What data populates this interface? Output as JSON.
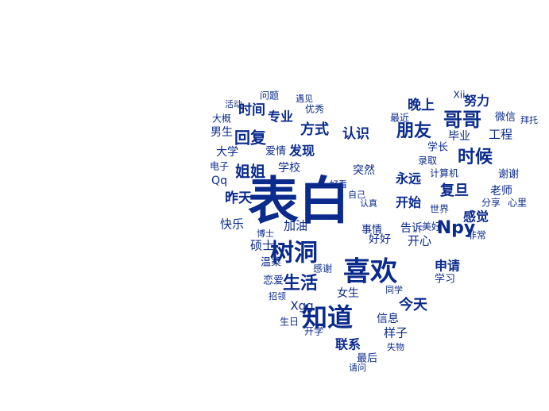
{
  "colors": {
    "ink": "#0a2a8c",
    "background": "#ffffff"
  },
  "words": [
    "表白",
    "喜欢",
    "树洞",
    "知道",
    "哥哥",
    "时候",
    "姐姐",
    "回复",
    "朋友",
    "认识",
    "生活",
    "Npy",
    "时间",
    "昨天",
    "复旦",
    "快乐",
    "今天",
    "晚上",
    "大学",
    "方式",
    "专业",
    "感觉",
    "申请",
    "联系",
    "发现",
    "永远",
    "开始",
    "硕士",
    "男生",
    "女生",
    "学校",
    "老师",
    "加油",
    "告诉",
    "开心",
    "好好",
    "工程",
    "毕业",
    "Qq",
    "微信",
    "爱情",
    "事情",
    "突然",
    "计算机",
    "谢谢",
    "努力",
    "学长",
    "世界",
    "分享",
    "心里",
    "美好",
    "非常",
    "Xgg",
    "样子",
    "信息",
    "学习",
    "温柔",
    "恋爱",
    "感谢",
    "最后",
    "请问",
    "生日",
    "开学",
    "问题",
    "活动",
    "大概",
    "遇见",
    "优秀",
    "最近",
    "录取",
    "电子",
    "好看",
    "认真",
    "自己",
    "Xii",
    "拜托",
    "招领",
    "失物",
    "博士",
    "同学"
  ]
}
